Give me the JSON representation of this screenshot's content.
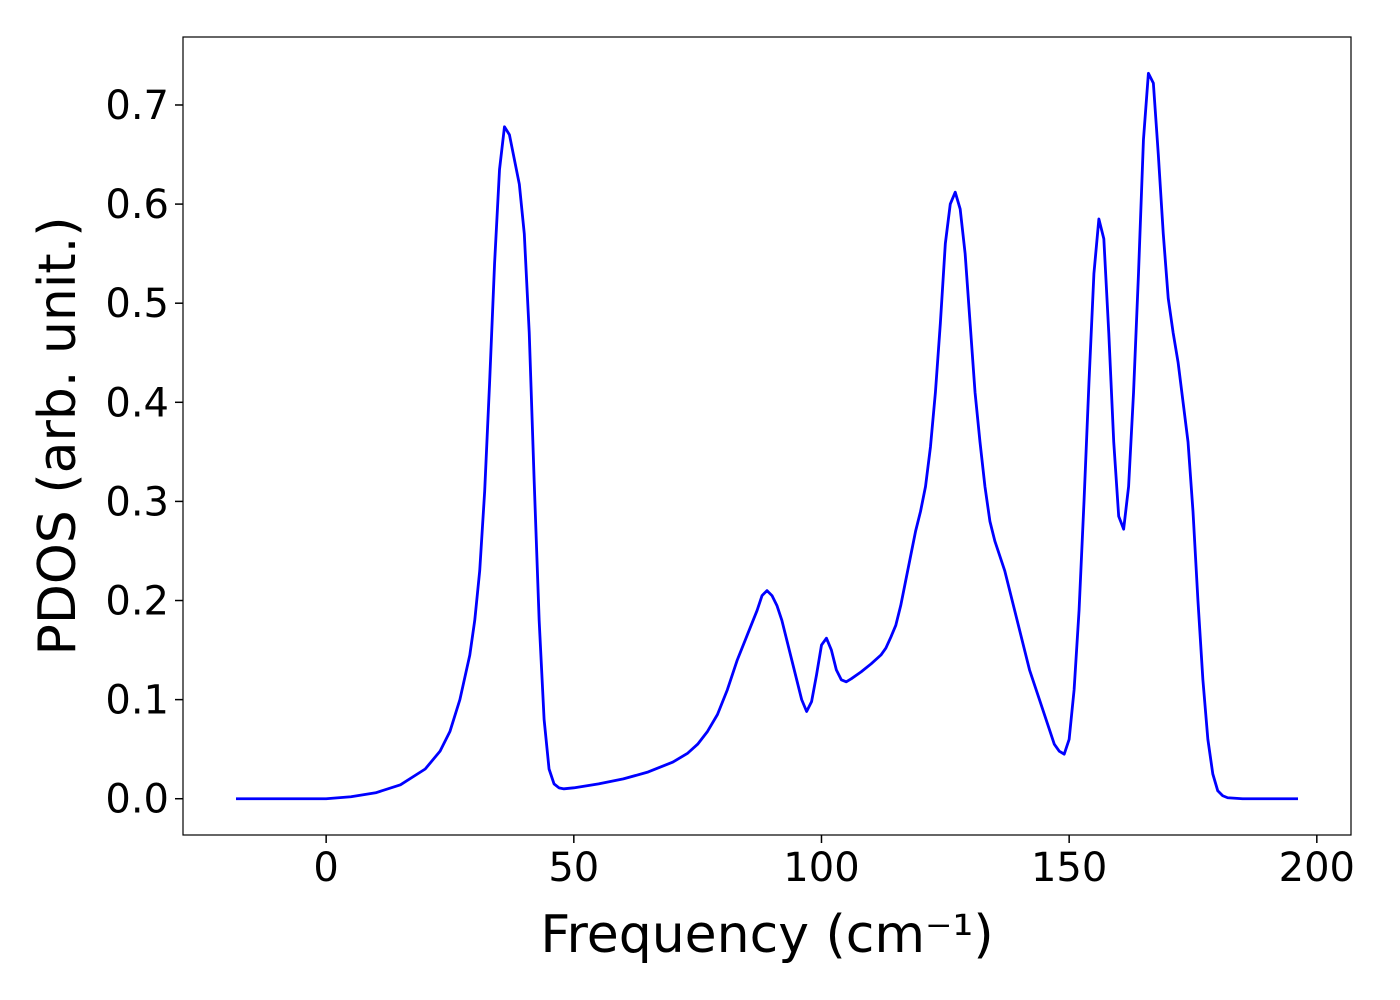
{
  "chart_data": {
    "type": "line",
    "xlabel": "Frequency (cm⁻¹)",
    "ylabel": "PDOS (arb. unit.)",
    "color": "#0000ff",
    "xlim": [
      -28.9,
      206.9
    ],
    "ylim": [
      -0.0366,
      0.7686
    ],
    "xticks": [
      0,
      50,
      100,
      150,
      200
    ],
    "yticks": [
      {
        "value": 0,
        "label": "0.0"
      },
      0.1,
      0.2,
      0.3,
      0.4,
      0.5,
      0.6,
      0.7
    ],
    "x": [
      -18.2,
      0,
      5,
      10,
      15,
      20,
      23,
      25,
      27,
      29,
      30,
      31,
      32,
      33,
      34,
      35,
      36,
      37,
      39,
      40,
      41,
      42,
      43,
      44,
      45,
      46,
      47,
      48,
      50,
      55,
      60,
      65,
      70,
      73,
      75,
      77,
      79,
      81,
      83,
      85,
      87,
      88,
      89,
      90,
      91,
      92,
      94,
      96,
      97,
      98,
      99,
      100,
      101,
      102,
      103,
      104,
      105,
      106,
      108,
      110,
      112,
      113,
      114,
      115,
      116,
      117,
      119,
      120,
      121,
      122,
      123,
      124,
      125,
      126,
      127,
      128,
      129,
      130,
      131,
      132,
      133,
      134,
      135,
      137,
      139,
      141,
      142,
      144,
      146,
      147,
      148,
      149,
      150,
      151,
      152,
      153,
      154,
      155,
      156,
      157,
      158,
      159,
      160,
      161,
      162,
      163,
      164,
      165,
      166,
      167,
      168,
      169,
      170,
      171,
      172,
      173,
      174,
      175,
      176,
      177,
      178,
      179,
      180,
      181,
      182,
      185,
      196.2
    ],
    "values": [
      0,
      0,
      0.002,
      0.006,
      0.014,
      0.03,
      0.048,
      0.068,
      0.1,
      0.145,
      0.18,
      0.23,
      0.31,
      0.42,
      0.54,
      0.635,
      0.678,
      0.67,
      0.62,
      0.57,
      0.47,
      0.32,
      0.18,
      0.08,
      0.03,
      0.015,
      0.011,
      0.01,
      0.011,
      0.015,
      0.02,
      0.027,
      0.037,
      0.046,
      0.055,
      0.068,
      0.085,
      0.11,
      0.14,
      0.165,
      0.19,
      0.205,
      0.21,
      0.205,
      0.195,
      0.18,
      0.14,
      0.1,
      0.088,
      0.098,
      0.125,
      0.155,
      0.162,
      0.15,
      0.13,
      0.12,
      0.118,
      0.121,
      0.128,
      0.136,
      0.145,
      0.152,
      0.163,
      0.175,
      0.195,
      0.22,
      0.27,
      0.29,
      0.315,
      0.355,
      0.41,
      0.48,
      0.56,
      0.6,
      0.612,
      0.595,
      0.55,
      0.48,
      0.41,
      0.36,
      0.315,
      0.28,
      0.26,
      0.23,
      0.19,
      0.15,
      0.13,
      0.1,
      0.07,
      0.055,
      0.048,
      0.045,
      0.06,
      0.11,
      0.19,
      0.3,
      0.42,
      0.53,
      0.585,
      0.565,
      0.47,
      0.36,
      0.285,
      0.272,
      0.315,
      0.41,
      0.53,
      0.665,
      0.732,
      0.722,
      0.65,
      0.57,
      0.505,
      0.47,
      0.44,
      0.4,
      0.36,
      0.29,
      0.2,
      0.12,
      0.06,
      0.025,
      0.008,
      0.003,
      0.001,
      0,
      0
    ]
  }
}
